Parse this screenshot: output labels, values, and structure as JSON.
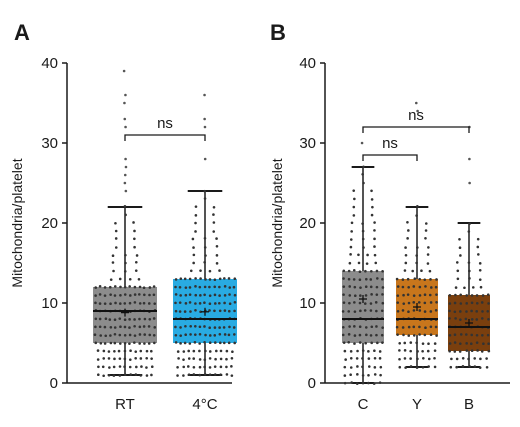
{
  "chart_data": [
    {
      "type": "box",
      "panel_label": "A",
      "ylabel": "Mitochondria/platelet",
      "ylim": [
        0,
        40
      ],
      "yticks": [
        0,
        10,
        20,
        30,
        40
      ],
      "categories": [
        "RT",
        "4°C"
      ],
      "boxes": [
        {
          "category": "RT",
          "color": "#8c8c8c",
          "min": 1,
          "q1": 5,
          "median": 9,
          "q3": 12,
          "whisker_high": 22,
          "mean": 8.8,
          "outliers": [
            24,
            25,
            26,
            27,
            28,
            32,
            33,
            35,
            36,
            39
          ]
        },
        {
          "category": "4°C",
          "color": "#29abe2",
          "min": 1,
          "q1": 5,
          "median": 8,
          "q3": 13,
          "whisker_high": 24,
          "mean": 8.9,
          "outliers": [
            28,
            32,
            33,
            36
          ]
        }
      ],
      "comparisons": [
        {
          "between": [
            "RT",
            "4°C"
          ],
          "label": "ns",
          "y": 31
        }
      ]
    },
    {
      "type": "box",
      "panel_label": "B",
      "ylabel": "Mitochondria/platelet",
      "ylim": [
        0,
        40
      ],
      "yticks": [
        0,
        10,
        20,
        30,
        40
      ],
      "categories": [
        "C",
        "Y",
        "B"
      ],
      "boxes": [
        {
          "category": "C",
          "color": "#8c8c8c",
          "min": 0,
          "q1": 5,
          "median": 8,
          "q3": 14,
          "whisker_high": 27,
          "mean": 10.5,
          "outliers": [
            30
          ]
        },
        {
          "category": "Y",
          "color": "#c8761c",
          "min": 2,
          "q1": 6,
          "median": 8,
          "q3": 13,
          "whisker_high": 22,
          "mean": 9.5,
          "outliers": [
            34,
            35
          ]
        },
        {
          "category": "B",
          "color": "#7a3f0e",
          "min": 2,
          "q1": 4,
          "median": 7,
          "q3": 11,
          "whisker_high": 20,
          "mean": 7.5,
          "outliers": [
            25,
            28,
            32
          ]
        }
      ],
      "comparisons": [
        {
          "between": [
            "C",
            "Y"
          ],
          "label": "ns",
          "y": 28.5
        },
        {
          "between": [
            "C",
            "B"
          ],
          "label": "ns",
          "y": 32
        }
      ]
    }
  ]
}
